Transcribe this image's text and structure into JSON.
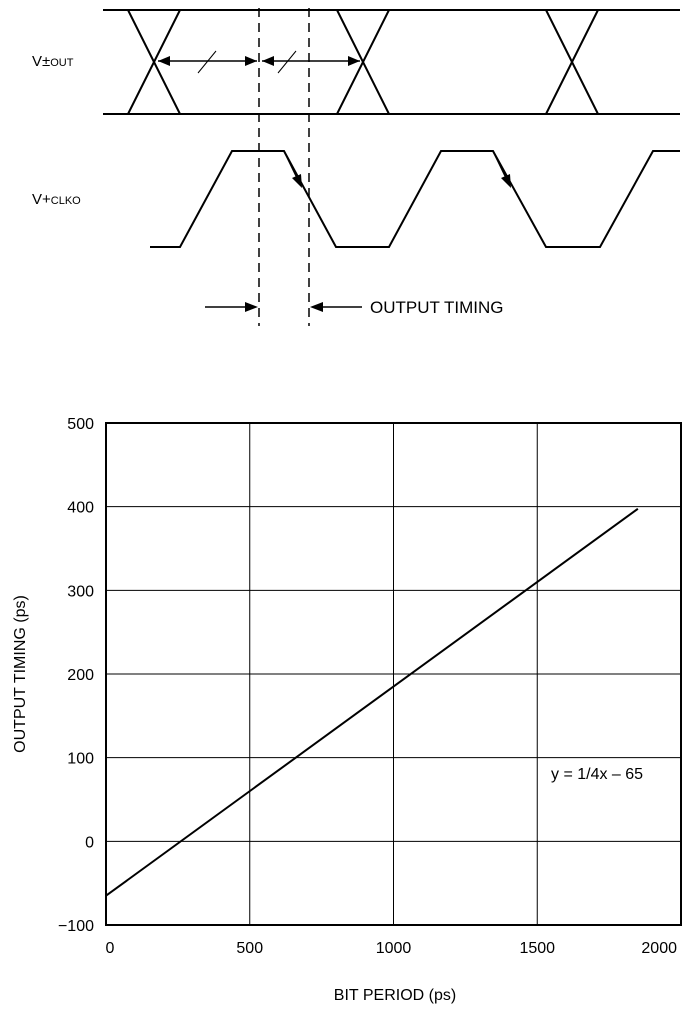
{
  "timing_diagram": {
    "signal_data_label": {
      "main": "V±",
      "sub": "OUT"
    },
    "signal_clock_label": {
      "main": "V+",
      "sub": "CLKO"
    },
    "output_timing_label": "OUTPUT TIMING"
  },
  "chart_data": {
    "type": "line",
    "title": "",
    "xlabel": "BIT PERIOD (ps)",
    "ylabel": "OUTPUT TIMING (ps)",
    "xlim": [
      0,
      2000
    ],
    "ylim": [
      -100,
      500
    ],
    "x_ticks": [
      0,
      500,
      1000,
      1500,
      2000
    ],
    "y_ticks": [
      -100,
      0,
      100,
      200,
      300,
      400,
      500
    ],
    "x_tick_labels": [
      "0",
      "500",
      "1000",
      "1500",
      "2000"
    ],
    "y_tick_labels": [
      "−100",
      "0",
      "100",
      "200",
      "300",
      "400",
      "500"
    ],
    "grid": true,
    "series": [
      {
        "x": [
          0,
          1850
        ],
        "y": [
          -65,
          397.5
        ]
      }
    ],
    "annotation": "y = 1/4x – 65",
    "line_color": "#000000"
  }
}
